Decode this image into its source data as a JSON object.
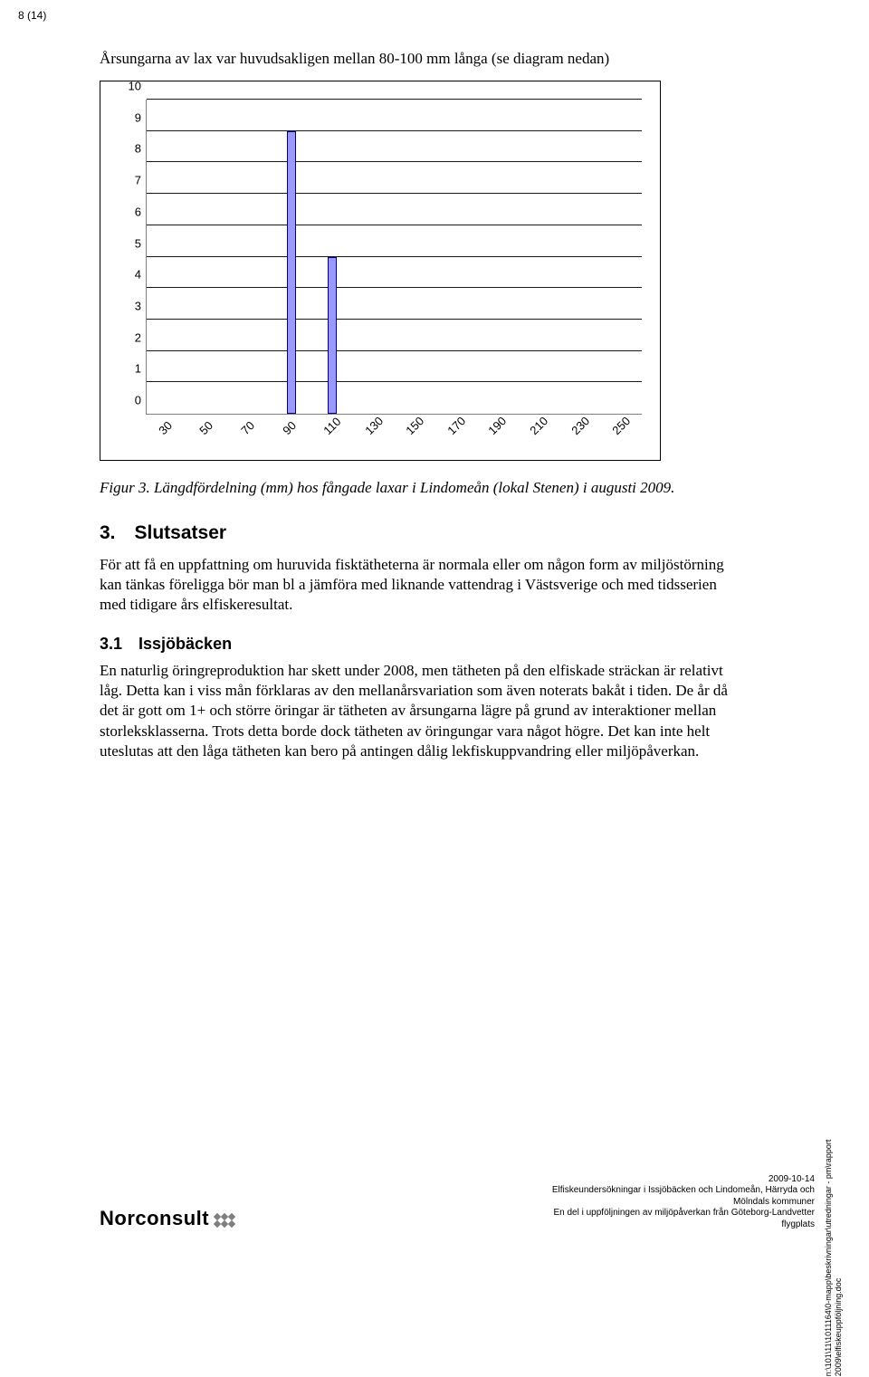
{
  "page_number": "8 (14)",
  "intro": "Årsungarna av lax var huvudsakligen mellan 80-100 mm långa (se diagram nedan)",
  "chart": {
    "type": "bar",
    "y_ticks": [
      0,
      1,
      2,
      3,
      4,
      5,
      6,
      7,
      8,
      9,
      10
    ],
    "x_ticks": [
      "30",
      "50",
      "70",
      "90",
      "110",
      "130",
      "150",
      "170",
      "190",
      "210",
      "230",
      "250"
    ],
    "ymax": 10,
    "bars": [
      {
        "x_index": 3,
        "value": 9
      },
      {
        "x_index": 4,
        "value": 5
      }
    ],
    "bar_fill": "#9999ff",
    "bar_border": "#000080",
    "grid_color": "#000000",
    "background": "#ffffff"
  },
  "caption": "Figur 3. Längdfördelning (mm) hos fångade laxar i Lindomeån (lokal Stenen) i augusti 2009.",
  "section_heading": "3. Slutsatser",
  "section_body": "För att få en uppfattning om huruvida fisktätheterna är normala eller om någon form av miljöstörning kan tänkas föreligga bör man bl a jämföra med liknande vattendrag i Västsverige och med tidsserien med tidigare års elfiskeresultat.",
  "subsection_heading": "3.1 Issjöbäcken",
  "subsection_body": "En naturlig öringreproduktion har skett under 2008, men tätheten på den elfiskade sträckan är relativt låg. Detta kan i viss mån förklaras av den mellanårsvariation som även noterats bakåt i tiden. De år då det är gott om 1+ och större öringar är tätheten av årsungarna lägre på grund av interaktioner mellan storleksklasserna. Trots detta borde dock tätheten av öringungar vara något högre. Det kan inte helt uteslutas att den låga tätheten kan bero på antingen dålig lekfiskuppvandring eller miljöpåverkan.",
  "vertical_note_line1": "n:\\101\\11\\1011164\\0-mapp\\beskrivningar\\utredningar - pm\\rapport",
  "vertical_note_line2": "2009\\elfiskeuppföljning.doc",
  "logo_text": "Norconsult",
  "footer": {
    "date": "2009-10-14",
    "line1": "Elfiskeundersökningar i Issjöbäcken och Lindomeån, Härryda och",
    "line2": "Mölndals kommuner",
    "line3": "En del i uppföljningen av miljöpåverkan från Göteborg-Landvetter",
    "line4": "flygplats"
  }
}
